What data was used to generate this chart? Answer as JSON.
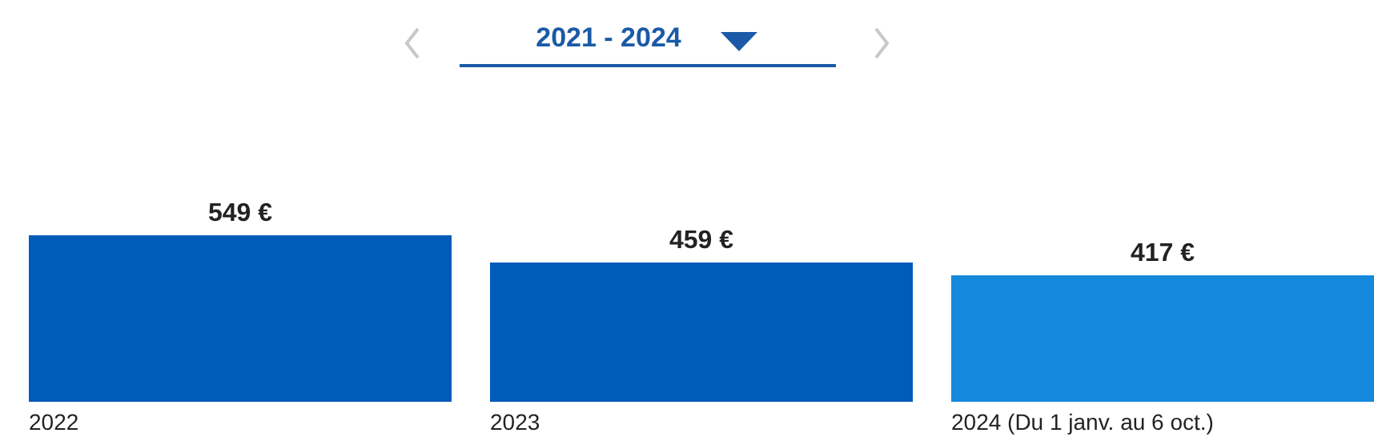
{
  "chart_data": {
    "type": "bar",
    "title": "2021 - 2024",
    "categories": [
      "2022",
      "2023",
      "2024 (Du 1 janv. au 6 oct.)"
    ],
    "values": [
      549,
      459,
      417
    ],
    "colors": [
      "#005bb9",
      "#005bb9",
      "#1589dd"
    ],
    "value_labels": [
      "549 €",
      "459 €",
      "417 €"
    ]
  }
}
